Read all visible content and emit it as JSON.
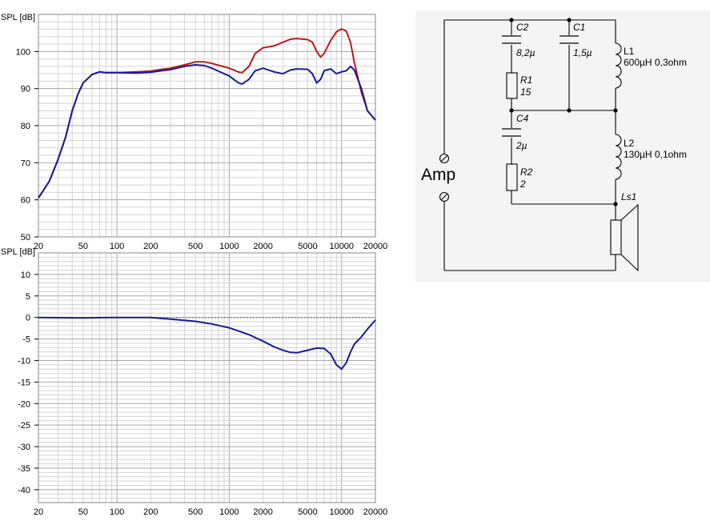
{
  "chart_data": [
    {
      "type": "line",
      "ylabel": "SPL [dB]",
      "x_scale": "log",
      "xlim": [
        20,
        20000
      ],
      "ylim": [
        50,
        110
      ],
      "yticks": [
        50,
        60,
        70,
        80,
        90,
        100
      ],
      "xticks": [
        "20",
        "50",
        "100",
        "200",
        "500",
        "1000",
        "2000",
        "5000",
        "10000",
        "20000"
      ],
      "grid": true,
      "series": [
        {
          "color": "#c01818",
          "x": [
            20,
            25,
            30,
            35,
            40,
            45,
            50,
            60,
            70,
            80,
            100,
            150,
            200,
            250,
            300,
            400,
            500,
            600,
            700,
            800,
            1000,
            1200,
            1300,
            1500,
            1700,
            2000,
            2500,
            3000,
            3500,
            4000,
            5000,
            5500,
            6000,
            6500,
            7000,
            8000,
            9000,
            10000,
            11000,
            12000,
            13000,
            15000,
            17000,
            20000
          ],
          "y": [
            60.5,
            65,
            71,
            77,
            84,
            88.5,
            91.5,
            93.8,
            94.5,
            94.3,
            94.3,
            94.5,
            94.7,
            95.2,
            95.5,
            96.4,
            97.2,
            97.2,
            96.8,
            96.3,
            95.5,
            94.5,
            94.3,
            96,
            99.5,
            101,
            101.5,
            102.5,
            103.3,
            103.5,
            103.2,
            102.5,
            100,
            98.5,
            99.5,
            103,
            105.3,
            106.1,
            105.5,
            102.5,
            97,
            89,
            84,
            81.5
          ]
        },
        {
          "color": "#1a1a9a",
          "x": [
            20,
            25,
            30,
            35,
            40,
            45,
            50,
            60,
            70,
            80,
            100,
            150,
            200,
            250,
            300,
            400,
            500,
            600,
            700,
            800,
            1000,
            1200,
            1300,
            1500,
            1700,
            2000,
            2500,
            3000,
            3500,
            4000,
            5000,
            5500,
            6000,
            6500,
            7000,
            8000,
            9000,
            10000,
            11000,
            12000,
            13000,
            15000,
            17000,
            20000
          ],
          "y": [
            60.5,
            65,
            71,
            77,
            84,
            88.5,
            91.5,
            93.8,
            94.5,
            94.3,
            94.3,
            94.2,
            94.4,
            94.8,
            95.1,
            96,
            96.4,
            96.2,
            95.5,
            94.7,
            93.4,
            91.6,
            91.2,
            92.5,
            94.8,
            95.5,
            94.5,
            94,
            95,
            95.3,
            95.2,
            94,
            91.5,
            92.5,
            94.8,
            95.3,
            94,
            94.5,
            94.8,
            96,
            95,
            90,
            84,
            81.5
          ]
        }
      ]
    },
    {
      "type": "line",
      "ylabel": "SPL [dB]",
      "x_scale": "log",
      "xlim": [
        20,
        20000
      ],
      "ylim": [
        -43,
        15
      ],
      "yticks": [
        10,
        5,
        0,
        -5,
        -10,
        -15,
        -20,
        -25,
        -30,
        -35,
        -40
      ],
      "xticks": [
        "20",
        "50",
        "100",
        "200",
        "500",
        "1000",
        "2000",
        "5000",
        "10000",
        "20000"
      ],
      "reference_line": 0,
      "grid": true,
      "series": [
        {
          "color": "#1a1a9a",
          "x": [
            20,
            50,
            100,
            200,
            300,
            500,
            700,
            1000,
            1500,
            2000,
            2500,
            3000,
            3500,
            4000,
            5000,
            6000,
            7000,
            8000,
            9000,
            10000,
            11000,
            12000,
            13000,
            15000,
            17000,
            20000
          ],
          "y": [
            0,
            -0.1,
            0,
            0,
            -0.4,
            -0.9,
            -1.5,
            -2.4,
            -4,
            -5.5,
            -6.8,
            -7.6,
            -8.1,
            -8.2,
            -7.6,
            -7.1,
            -7.2,
            -8.5,
            -11,
            -12,
            -10.5,
            -8,
            -6.2,
            -4.5,
            -2.7,
            -0.6
          ]
        }
      ]
    }
  ],
  "schematic": {
    "components": [
      {
        "ref": "C2",
        "value": "8,2µ"
      },
      {
        "ref": "C1",
        "value": "1,5µ"
      },
      {
        "ref": "L1",
        "value": "600µH 0,3ohm"
      },
      {
        "ref": "R1",
        "value": "15"
      },
      {
        "ref": "C4",
        "value": "2µ"
      },
      {
        "ref": "L2",
        "value": "130µH 0,1ohm"
      },
      {
        "ref": "R2",
        "value": "2"
      },
      {
        "ref": "Ls1",
        "value": ""
      }
    ],
    "amp_label": "Amp"
  }
}
